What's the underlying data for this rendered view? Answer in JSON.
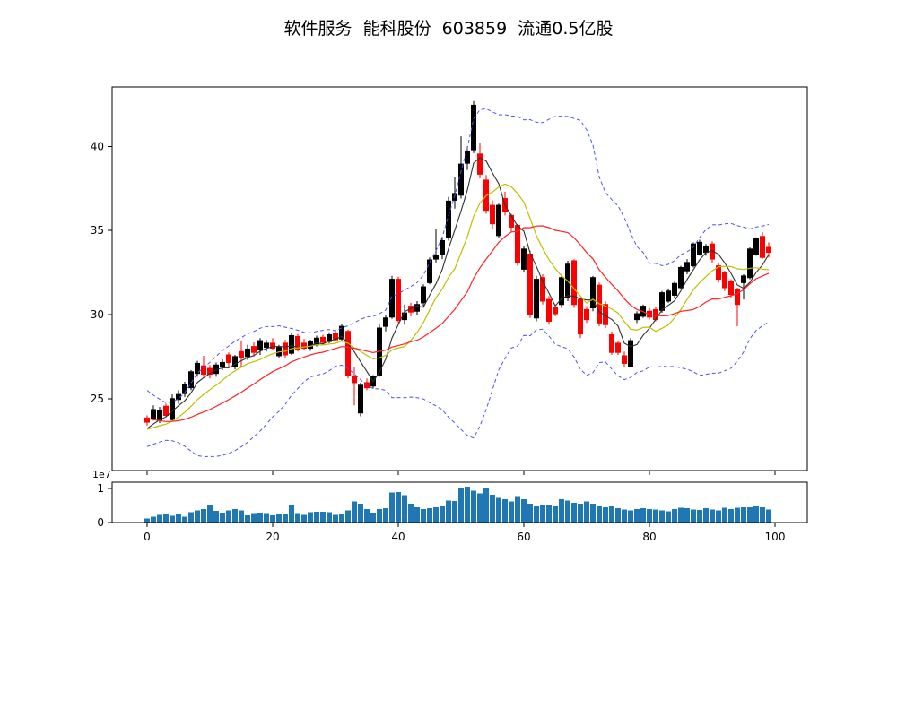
{
  "title": "软件服务  能科股份  603859  流通0.5亿股",
  "chart_data": {
    "type": "candlestick",
    "title": "软件服务  能科股份  603859  流通0.5亿股",
    "panels": [
      "price-with-overlays",
      "volume"
    ],
    "x_axis": {
      "ticks": [
        0,
        20,
        40,
        60,
        80,
        100
      ],
      "tick_labels": [
        "0",
        "20",
        "40",
        "60",
        "80",
        "100"
      ],
      "range": [
        -5.6,
        105.1
      ]
    },
    "price_axis": {
      "ticks": [
        25,
        30,
        35,
        40
      ],
      "tick_labels": [
        "25",
        "30",
        "35",
        "40"
      ],
      "range": [
        20.7,
        43.5
      ],
      "grid": false
    },
    "volume_axis": {
      "ticks": [
        0,
        1
      ],
      "tick_labels": [
        "0",
        "1"
      ],
      "multiplier_label": "1e7",
      "range": [
        0,
        1.18
      ]
    },
    "candle_colors": {
      "up": "#000000",
      "down": "#ff0000"
    },
    "ohlc": {
      "open": [
        23.85,
        23.8,
        23.7,
        24.55,
        23.75,
        24.95,
        25.3,
        25.65,
        26.5,
        26.95,
        26.8,
        26.5,
        26.9,
        27.6,
        26.9,
        27.8,
        27.5,
        28.1,
        27.9,
        28.05,
        28.3,
        27.55,
        28.3,
        27.7,
        28.7,
        28.3,
        28.0,
        28.2,
        28.65,
        28.4,
        28.9,
        28.55,
        29.0,
        26.3,
        24.15,
        25.95,
        25.75,
        26.4,
        29.3,
        29.85,
        32.1,
        29.7,
        30.5,
        30.2,
        30.7,
        31.9,
        33.3,
        33.6,
        34.6,
        36.8,
        37.1,
        39.0,
        39.8,
        39.55,
        38.0,
        36.5,
        34.7,
        36.9,
        35.9,
        35.3,
        32.7,
        33.6,
        29.8,
        32.2,
        30.9,
        30.4,
        30.6,
        31.0,
        33.2,
        30.9,
        30.3,
        30.4,
        31.75,
        30.6,
        28.8,
        28.3,
        27.55,
        26.9,
        29.7,
        29.9,
        30.2,
        30.3,
        30.25,
        30.8,
        31.15,
        31.6,
        32.6,
        32.9,
        33.6,
        33.7,
        34.2,
        32.9,
        32.5,
        32.0,
        31.5,
        31.9,
        32.2,
        33.6,
        34.65,
        34.0
      ],
      "high": [
        24.0,
        24.6,
        24.5,
        24.7,
        25.25,
        25.5,
        26.0,
        26.7,
        27.25,
        27.55,
        27.0,
        27.15,
        27.35,
        27.75,
        27.6,
        28.4,
        28.2,
        28.35,
        28.6,
        28.5,
        28.6,
        28.2,
        28.5,
        28.9,
        28.85,
        28.55,
        28.5,
        28.75,
        28.8,
        28.95,
        29.1,
        29.45,
        29.1,
        26.9,
        25.95,
        26.2,
        26.4,
        29.4,
        30.0,
        32.3,
        32.25,
        30.6,
        30.7,
        30.8,
        31.8,
        33.4,
        35.1,
        34.6,
        37.0,
        38.2,
        40.6,
        40.0,
        42.7,
        40.2,
        38.3,
        36.8,
        36.6,
        37.3,
        36.0,
        35.4,
        34.1,
        33.8,
        32.3,
        32.4,
        31.1,
        30.6,
        32.35,
        33.2,
        33.3,
        31.0,
        30.5,
        32.3,
        31.9,
        30.8,
        29.0,
        28.4,
        27.8,
        28.6,
        30.2,
        30.6,
        30.4,
        30.45,
        31.4,
        31.55,
        31.95,
        32.9,
        33.3,
        34.3,
        34.45,
        34.2,
        34.35,
        33.1,
        32.6,
        32.1,
        31.6,
        32.4,
        34.0,
        34.6,
        34.9,
        34.3
      ],
      "low": [
        23.4,
        23.7,
        23.55,
        23.9,
        23.7,
        24.7,
        25.1,
        25.5,
        26.3,
        26.3,
        26.2,
        26.3,
        26.7,
        26.9,
        26.75,
        26.9,
        27.3,
        27.5,
        27.6,
        27.8,
        27.9,
        27.45,
        27.4,
        27.6,
        27.8,
        27.9,
        27.85,
        28.1,
        28.2,
        28.3,
        28.4,
        28.45,
        26.2,
        24.6,
        23.95,
        25.5,
        25.6,
        26.3,
        29.0,
        29.75,
        29.5,
        29.4,
        29.9,
        30.0,
        30.5,
        31.8,
        33.1,
        33.3,
        34.4,
        36.3,
        36.9,
        38.6,
        39.6,
        38.1,
        36.0,
        35.1,
        34.55,
        35.9,
        34.9,
        32.9,
        32.5,
        29.8,
        29.6,
        30.6,
        29.4,
        29.9,
        30.4,
        30.8,
        30.4,
        28.6,
        29.5,
        30.2,
        29.3,
        29.2,
        27.6,
        27.6,
        26.9,
        26.85,
        29.5,
        29.8,
        29.7,
        29.6,
        30.1,
        30.7,
        31.0,
        31.5,
        32.4,
        32.8,
        33.5,
        33.5,
        33.1,
        31.9,
        31.4,
        31.0,
        29.3,
        30.9,
        32.1,
        33.5,
        33.3,
        33.4
      ],
      "close": [
        23.6,
        24.35,
        24.3,
        24.0,
        25.0,
        25.25,
        25.85,
        26.6,
        27.1,
        26.45,
        26.45,
        27.0,
        27.15,
        27.15,
        27.5,
        27.45,
        27.95,
        27.75,
        28.45,
        28.3,
        28.0,
        28.05,
        27.6,
        28.75,
        27.9,
        28.0,
        28.4,
        28.6,
        28.35,
        28.8,
        28.5,
        29.3,
        26.4,
        25.95,
        25.8,
        25.65,
        26.3,
        29.2,
        29.8,
        32.1,
        29.65,
        30.1,
        30.15,
        30.6,
        31.65,
        33.25,
        33.5,
        34.4,
        36.75,
        37.2,
        38.95,
        39.7,
        42.45,
        38.35,
        36.2,
        35.4,
        36.5,
        36.1,
        35.2,
        33.1,
        33.9,
        30.0,
        32.1,
        30.8,
        29.6,
        30.05,
        32.2,
        33.0,
        30.6,
        28.85,
        29.7,
        32.2,
        29.5,
        29.4,
        27.75,
        27.75,
        27.1,
        28.45,
        30.05,
        30.5,
        29.85,
        29.7,
        31.3,
        31.4,
        31.85,
        32.8,
        33.1,
        34.2,
        34.3,
        34.05,
        33.3,
        32.1,
        31.6,
        31.2,
        30.6,
        32.3,
        33.9,
        34.55,
        33.4,
        33.7
      ]
    },
    "volume_1e7": [
      0.12,
      0.17,
      0.22,
      0.25,
      0.2,
      0.24,
      0.17,
      0.3,
      0.36,
      0.4,
      0.5,
      0.34,
      0.29,
      0.35,
      0.4,
      0.36,
      0.21,
      0.27,
      0.29,
      0.27,
      0.21,
      0.25,
      0.24,
      0.52,
      0.28,
      0.23,
      0.3,
      0.31,
      0.31,
      0.3,
      0.23,
      0.26,
      0.35,
      0.62,
      0.55,
      0.4,
      0.29,
      0.4,
      0.42,
      0.88,
      0.9,
      0.8,
      0.55,
      0.45,
      0.4,
      0.42,
      0.45,
      0.48,
      0.65,
      0.63,
      1.0,
      1.05,
      0.93,
      0.85,
      1.0,
      0.82,
      0.72,
      0.68,
      0.62,
      0.78,
      0.68,
      0.55,
      0.48,
      0.52,
      0.5,
      0.48,
      0.68,
      0.65,
      0.58,
      0.55,
      0.62,
      0.55,
      0.48,
      0.45,
      0.48,
      0.42,
      0.38,
      0.36,
      0.4,
      0.42,
      0.4,
      0.38,
      0.35,
      0.33,
      0.4,
      0.43,
      0.42,
      0.38,
      0.37,
      0.42,
      0.38,
      0.35,
      0.43,
      0.4,
      0.44,
      0.45,
      0.45,
      0.47,
      0.45,
      0.38
    ],
    "volume_color": "#1f77b4",
    "overlays": {
      "ma_fast": {
        "type": "sma",
        "window": 5,
        "color": "#303030",
        "style": "solid"
      },
      "ma_mid": {
        "type": "sma",
        "window": 10,
        "color": "#bfbf00",
        "style": "solid"
      },
      "ma_slow": {
        "type": "sma",
        "window": 20,
        "color": "#ff2222",
        "style": "solid"
      },
      "bollinger": {
        "window": 20,
        "num_std": 2,
        "color": "#5050ff",
        "style": "dashed"
      },
      "warmup_closes_inferred": [
        26.0,
        25.7,
        25.4,
        25.1,
        24.8,
        24.5,
        24.25,
        24.0,
        23.8,
        23.6,
        23.45,
        23.3,
        23.2,
        23.1,
        23.05,
        23.0,
        23.0,
        23.05,
        23.15,
        23.3
      ]
    },
    "legend": "none",
    "spine_color": "#000000"
  }
}
